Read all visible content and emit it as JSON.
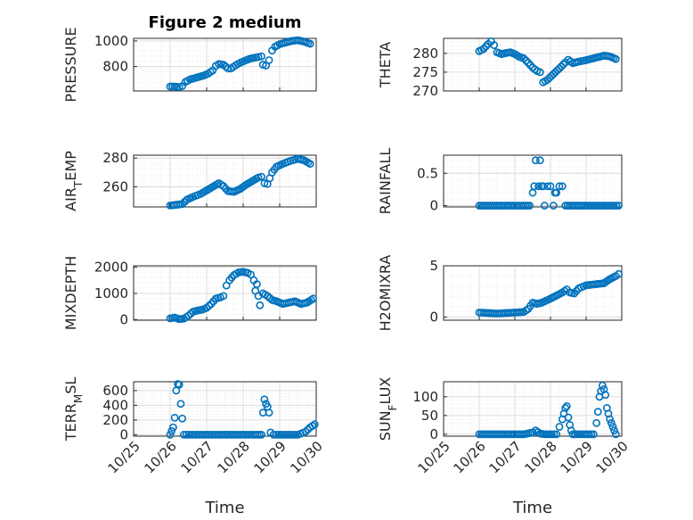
{
  "figure": {
    "title": "Figure 2 medium",
    "series_color": "#0072BD",
    "marker": "open-circle"
  },
  "chart_data": [
    {
      "type": "scatter",
      "ylabel": "PRESSURE",
      "ylabel_sub": null,
      "title": "Figure 2 medium",
      "xlim": [
        "10/25",
        "10/30"
      ],
      "ylim": [
        610,
        1020
      ],
      "yticks": [
        800,
        1000
      ],
      "grid": true,
      "points": [
        [
          "10/26 00:00",
          645
        ],
        [
          "10/26 03:00",
          645
        ],
        [
          "10/26 06:00",
          640
        ],
        [
          "10/26 08:00",
          648
        ],
        [
          "10/26 10:00",
          680
        ],
        [
          "10/26 13:00",
          700
        ],
        [
          "10/26 16:00",
          710
        ],
        [
          "10/26 19:00",
          720
        ],
        [
          "10/26 22:00",
          730
        ],
        [
          "10/27 01:00",
          745
        ],
        [
          "10/27 04:00",
          770
        ],
        [
          "10/27 06:00",
          805
        ],
        [
          "10/27 08:00",
          820
        ],
        [
          "10/27 11:00",
          815
        ],
        [
          "10/27 14:00",
          785
        ],
        [
          "10/27 16:00",
          785
        ],
        [
          "10/27 19:00",
          810
        ],
        [
          "10/27 22:00",
          830
        ],
        [
          "10/28 01:00",
          845
        ],
        [
          "10/28 04:00",
          860
        ],
        [
          "10/28 07:00",
          868
        ],
        [
          "10/28 10:00",
          875
        ],
        [
          "10/28 12:00",
          880
        ],
        [
          "10/28 13:00",
          815
        ],
        [
          "10/28 15:00",
          808
        ],
        [
          "10/28 17:00",
          850
        ],
        [
          "10/28 19:00",
          925
        ],
        [
          "10/28 21:00",
          955
        ],
        [
          "10/29 00:00",
          975
        ],
        [
          "10/29 04:00",
          988
        ],
        [
          "10/29 08:00",
          1000
        ],
        [
          "10/29 12:00",
          1005
        ],
        [
          "10/29 16:00",
          995
        ],
        [
          "10/29 20:00",
          978
        ]
      ]
    },
    {
      "type": "scatter",
      "ylabel": "THETA",
      "ylabel_sub": null,
      "xlim": [
        "10/25",
        "10/30"
      ],
      "ylim": [
        270,
        284
      ],
      "yticks": [
        270,
        275,
        280
      ],
      "grid": true,
      "points": [
        [
          "10/26 00:00",
          280.6
        ],
        [
          "10/26 03:00",
          281.2
        ],
        [
          "10/26 06:00",
          282.5
        ],
        [
          "10/26 08:00",
          283.2
        ],
        [
          "10/26 10:00",
          282.2
        ],
        [
          "10/26 12:00",
          280.3
        ],
        [
          "10/26 15:00",
          279.8
        ],
        [
          "10/26 18:00",
          280.1
        ],
        [
          "10/26 21:00",
          280.3
        ],
        [
          "10/27 00:00",
          279.8
        ],
        [
          "10/27 03:00",
          279.1
        ],
        [
          "10/27 06:00",
          278.7
        ],
        [
          "10/27 09:00",
          277.5
        ],
        [
          "10/27 12:00",
          276.2
        ],
        [
          "10/27 15:00",
          275.3
        ],
        [
          "10/27 17:00",
          275.0
        ],
        [
          "10/27 19:00",
          272.3
        ],
        [
          "10/27 22:00",
          273.0
        ],
        [
          "10/28 02:00",
          274.5
        ],
        [
          "10/28 06:00",
          276.0
        ],
        [
          "10/28 10:00",
          277.6
        ],
        [
          "10/28 12:00",
          278.3
        ],
        [
          "10/28 15:00",
          277.4
        ],
        [
          "10/28 19:00",
          277.8
        ],
        [
          "10/29 00:00",
          278.2
        ],
        [
          "10/29 06:00",
          278.8
        ],
        [
          "10/29 12:00",
          279.4
        ],
        [
          "10/29 16:00",
          279.2
        ],
        [
          "10/29 20:00",
          278.5
        ]
      ]
    },
    {
      "type": "scatter",
      "ylabel": "AIR",
      "ylabel_sub": "T",
      "ylabel_rest": "EMP",
      "xlim": [
        "10/25",
        "10/30"
      ],
      "ylim": [
        246,
        282
      ],
      "yticks": [
        260,
        280
      ],
      "grid": true,
      "points": [
        [
          "10/26 00:00",
          247
        ],
        [
          "10/26 04:00",
          247.5
        ],
        [
          "10/26 08:00",
          248
        ],
        [
          "10/26 11:00",
          251
        ],
        [
          "10/26 15:00",
          253
        ],
        [
          "10/26 20:00",
          255
        ],
        [
          "10/27 00:00",
          257.5
        ],
        [
          "10/27 04:00",
          260
        ],
        [
          "10/27 08:00",
          262.5
        ],
        [
          "10/27 11:00",
          260.5
        ],
        [
          "10/27 14:00",
          257
        ],
        [
          "10/27 18:00",
          256.5
        ],
        [
          "10/27 22:00",
          258.5
        ],
        [
          "10/28 02:00",
          261.5
        ],
        [
          "10/28 06:00",
          264
        ],
        [
          "10/28 10:00",
          266.5
        ],
        [
          "10/28 12:00",
          267
        ],
        [
          "10/28 14:00",
          262.5
        ],
        [
          "10/28 16:00",
          262
        ],
        [
          "10/28 19:00",
          270
        ],
        [
          "10/28 22:00",
          274
        ],
        [
          "10/29 02:00",
          276
        ],
        [
          "10/29 07:00",
          278
        ],
        [
          "10/29 12:00",
          279.5
        ],
        [
          "10/29 16:00",
          278.5
        ],
        [
          "10/29 20:00",
          276
        ]
      ]
    },
    {
      "type": "scatter",
      "ylabel": "RAINFALL",
      "ylabel_sub": null,
      "xlim": [
        "10/25",
        "10/30"
      ],
      "ylim": [
        -0.02,
        0.78
      ],
      "yticks": [
        0,
        0.5
      ],
      "grid": true,
      "points": [
        [
          "10/26 00:00",
          0
        ],
        [
          "10/26 06:00",
          0
        ],
        [
          "10/26 12:00",
          0
        ],
        [
          "10/26 18:00",
          0
        ],
        [
          "10/27 00:00",
          0
        ],
        [
          "10/27 06:00",
          0
        ],
        [
          "10/27 10:00",
          0
        ],
        [
          "10/27 12:00",
          0.2
        ],
        [
          "10/27 13:00",
          0.3
        ],
        [
          "10/27 14:00",
          0.7
        ],
        [
          "10/27 16:00",
          0.3
        ],
        [
          "10/27 17:00",
          0.7
        ],
        [
          "10/27 18:00",
          0.3
        ],
        [
          "10/27 19:00",
          0.3
        ],
        [
          "10/27 20:00",
          0
        ],
        [
          "10/27 22:00",
          0.3
        ],
        [
          "10/28 00:00",
          0.3
        ],
        [
          "10/28 02:00",
          0
        ],
        [
          "10/28 03:00",
          0.2
        ],
        [
          "10/28 04:00",
          0.2
        ],
        [
          "10/28 06:00",
          0.3
        ],
        [
          "10/28 08:00",
          0.3
        ],
        [
          "10/28 10:00",
          0
        ],
        [
          "10/28 16:00",
          0
        ],
        [
          "10/28 22:00",
          0
        ],
        [
          "10/29 06:00",
          0
        ],
        [
          "10/29 14:00",
          0
        ],
        [
          "10/29 22:00",
          0
        ]
      ]
    },
    {
      "type": "scatter",
      "ylabel": "MIXDEPTH",
      "ylabel_sub": null,
      "xlim": [
        "10/25",
        "10/30"
      ],
      "ylim": [
        -20,
        2050
      ],
      "yticks": [
        0,
        1000,
        2000
      ],
      "grid": true,
      "points": [
        [
          "10/26 00:00",
          50
        ],
        [
          "10/26 03:00",
          80
        ],
        [
          "10/26 06:00",
          20
        ],
        [
          "10/26 09:00",
          40
        ],
        [
          "10/26 12:00",
          150
        ],
        [
          "10/26 15:00",
          300
        ],
        [
          "10/26 18:00",
          350
        ],
        [
          "10/26 21:00",
          380
        ],
        [
          "10/27 00:00",
          450
        ],
        [
          "10/27 03:00",
          600
        ],
        [
          "10/27 06:00",
          800
        ],
        [
          "10/27 09:00",
          850
        ],
        [
          "10/27 11:00",
          900
        ],
        [
          "10/27 13:00",
          1300
        ],
        [
          "10/27 15:00",
          1500
        ],
        [
          "10/27 18:00",
          1700
        ],
        [
          "10/27 21:00",
          1800
        ],
        [
          "10/28 00:00",
          1820
        ],
        [
          "10/28 03:00",
          1780
        ],
        [
          "10/28 05:00",
          1720
        ],
        [
          "10/28 07:00",
          1500
        ],
        [
          "10/28 08:00",
          1100
        ],
        [
          "10/28 09:00",
          1350
        ],
        [
          "10/28 10:00",
          900
        ],
        [
          "10/28 11:00",
          550
        ],
        [
          "10/28 13:00",
          1000
        ],
        [
          "10/28 16:00",
          900
        ],
        [
          "10/28 19:00",
          750
        ],
        [
          "10/28 22:00",
          700
        ],
        [
          "10/29 02:00",
          600
        ],
        [
          "10/29 06:00",
          650
        ],
        [
          "10/29 10:00",
          700
        ],
        [
          "10/29 14:00",
          600
        ],
        [
          "10/29 18:00",
          650
        ],
        [
          "10/29 22:00",
          800
        ]
      ]
    },
    {
      "type": "scatter",
      "ylabel": "H2OMIXRA",
      "ylabel_sub": null,
      "xlim": [
        "10/25",
        "10/30"
      ],
      "ylim": [
        -0.3,
        5
      ],
      "yticks": [
        0,
        5
      ],
      "grid": true,
      "points": [
        [
          "10/26 00:00",
          0.45
        ],
        [
          "10/26 06:00",
          0.4
        ],
        [
          "10/26 12:00",
          0.35
        ],
        [
          "10/26 18:00",
          0.4
        ],
        [
          "10/27 00:00",
          0.45
        ],
        [
          "10/27 06:00",
          0.5
        ],
        [
          "10/27 09:00",
          0.8
        ],
        [
          "10/27 12:00",
          1.4
        ],
        [
          "10/27 15:00",
          1.3
        ],
        [
          "10/27 18:00",
          1.4
        ],
        [
          "10/27 21:00",
          1.6
        ],
        [
          "10/28 00:00",
          1.8
        ],
        [
          "10/28 04:00",
          2.1
        ],
        [
          "10/28 08:00",
          2.4
        ],
        [
          "10/28 11:00",
          2.7
        ],
        [
          "10/28 13:00",
          2.4
        ],
        [
          "10/28 16:00",
          2.3
        ],
        [
          "10/28 19:00",
          2.8
        ],
        [
          "10/29 00:00",
          3.1
        ],
        [
          "10/29 06:00",
          3.2
        ],
        [
          "10/29 12:00",
          3.3
        ],
        [
          "10/29 16:00",
          3.7
        ],
        [
          "10/29 20:00",
          4.0
        ],
        [
          "10/29 22:00",
          4.2
        ]
      ]
    },
    {
      "type": "scatter",
      "ylabel": "TERR",
      "ylabel_sub": "M",
      "ylabel_rest": "SL",
      "xlim": [
        "10/25",
        "10/30"
      ],
      "ylim": [
        -20,
        720
      ],
      "yticks": [
        0,
        200,
        400,
        600
      ],
      "grid": true,
      "points": [
        [
          "10/26 00:00",
          0
        ],
        [
          "10/26 01:00",
          50
        ],
        [
          "10/26 02:00",
          100
        ],
        [
          "10/26 03:00",
          230
        ],
        [
          "10/26 04:00",
          600
        ],
        [
          "10/26 05:00",
          690
        ],
        [
          "10/26 06:00",
          680
        ],
        [
          "10/26 07:00",
          420
        ],
        [
          "10/26 08:00",
          220
        ],
        [
          "10/26 09:00",
          0
        ],
        [
          "10/26 14:00",
          0
        ],
        [
          "10/26 20:00",
          0
        ],
        [
          "10/27 02:00",
          0
        ],
        [
          "10/27 08:00",
          0
        ],
        [
          "10/27 14:00",
          0
        ],
        [
          "10/27 20:00",
          0
        ],
        [
          "10/28 02:00",
          0
        ],
        [
          "10/28 08:00",
          0
        ],
        [
          "10/28 12:00",
          0
        ],
        [
          "10/28 13:00",
          300
        ],
        [
          "10/28 14:00",
          480
        ],
        [
          "10/28 15:00",
          420
        ],
        [
          "10/28 16:00",
          380
        ],
        [
          "10/28 17:00",
          300
        ],
        [
          "10/28 18:00",
          30
        ],
        [
          "10/28 20:00",
          0
        ],
        [
          "10/29 04:00",
          0
        ],
        [
          "10/29 12:00",
          0
        ],
        [
          "10/29 17:00",
          40
        ],
        [
          "10/29 20:00",
          100
        ],
        [
          "10/29 23:00",
          140
        ]
      ]
    },
    {
      "type": "scatter",
      "ylabel": "SUN",
      "ylabel_sub": "F",
      "ylabel_rest": "LUX",
      "xlim": [
        "10/25",
        "10/30"
      ],
      "ylim": [
        -5,
        140
      ],
      "yticks": [
        0,
        50,
        100
      ],
      "grid": true,
      "points": [
        [
          "10/26 00:00",
          0
        ],
        [
          "10/26 06:00",
          0
        ],
        [
          "10/26 12:00",
          0
        ],
        [
          "10/26 18:00",
          0
        ],
        [
          "10/27 00:00",
          0
        ],
        [
          "10/27 06:00",
          0
        ],
        [
          "10/27 12:00",
          5
        ],
        [
          "10/27 14:00",
          10
        ],
        [
          "10/27 17:00",
          2
        ],
        [
          "10/27 20:00",
          0
        ],
        [
          "10/28 04:00",
          0
        ],
        [
          "10/28 06:00",
          20
        ],
        [
          "10/28 08:00",
          40
        ],
        [
          "10/28 09:00",
          55
        ],
        [
          "10/28 10:00",
          70
        ],
        [
          "10/28 11:00",
          75
        ],
        [
          "10/28 12:00",
          45
        ],
        [
          "10/28 13:00",
          25
        ],
        [
          "10/28 14:00",
          10
        ],
        [
          "10/28 15:00",
          0
        ],
        [
          "10/28 23:00",
          0
        ],
        [
          "10/29 05:00",
          0
        ],
        [
          "10/29 07:00",
          30
        ],
        [
          "10/29 08:00",
          60
        ],
        [
          "10/29 09:00",
          100
        ],
        [
          "10/29 10:00",
          115
        ],
        [
          "10/29 11:00",
          130
        ],
        [
          "10/29 12:00",
          120
        ],
        [
          "10/29 13:00",
          105
        ],
        [
          "10/29 14:00",
          70
        ],
        [
          "10/29 15:00",
          55
        ],
        [
          "10/29 16:00",
          40
        ],
        [
          "10/29 17:00",
          30
        ],
        [
          "10/29 18:00",
          20
        ],
        [
          "10/29 19:00",
          10
        ],
        [
          "10/29 20:00",
          0
        ]
      ]
    }
  ],
  "xaxis": {
    "label": "Time",
    "ticks": [
      "10/25",
      "10/26",
      "10/27",
      "10/28",
      "10/29",
      "10/30"
    ]
  }
}
